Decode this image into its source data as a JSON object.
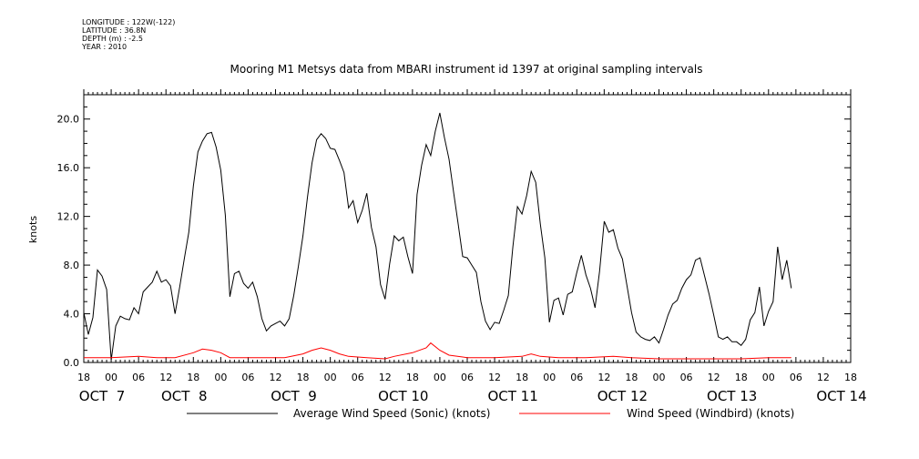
{
  "metadata": {
    "longitude": "LONGITUDE : 122W(-122)",
    "latitude": "LATITUDE : 36.8N",
    "depth": "DEPTH (m) : -2.5",
    "year": "YEAR : 2010"
  },
  "chart_data": {
    "type": "line",
    "title": "Mooring M1 Metsys data from MBARI instrument id 1397 at original sampling intervals",
    "ylabel": "knots",
    "xlabel": "",
    "ylim": [
      0,
      22
    ],
    "yticks": [
      "0.0",
      "4.0",
      "8.0",
      "12.0",
      "16.0",
      "20.0"
    ],
    "xlim_hours": [
      0,
      168
    ],
    "x_hour_labels": [
      "18",
      "00",
      "06",
      "12",
      "18",
      "00",
      "06",
      "12",
      "18",
      "00",
      "06",
      "12",
      "18",
      "00",
      "06",
      "12",
      "18",
      "00",
      "06",
      "12",
      "18",
      "00",
      "06",
      "12",
      "18",
      "00",
      "06",
      "12",
      "18"
    ],
    "x_day_labels": [
      "OCT  7",
      "OCT  8",
      "OCT  9",
      "OCT 10",
      "OCT 11",
      "OCT 12",
      "OCT 13",
      "OCT 14"
    ],
    "grid": false,
    "legend_placement": "bottom",
    "series": [
      {
        "name": "Average Wind Speed (Sonic) (knots)",
        "color": "#000000",
        "points": [
          [
            0,
            4.1
          ],
          [
            1,
            2.3
          ],
          [
            2,
            3.7
          ],
          [
            3,
            7.6
          ],
          [
            4,
            7.1
          ],
          [
            5,
            6.0
          ],
          [
            6,
            0.2
          ],
          [
            7,
            3.0
          ],
          [
            8,
            3.8
          ],
          [
            9,
            3.6
          ],
          [
            10,
            3.5
          ],
          [
            11,
            4.5
          ],
          [
            12,
            4.0
          ],
          [
            13,
            5.8
          ],
          [
            14,
            6.2
          ],
          [
            15,
            6.6
          ],
          [
            16,
            7.5
          ],
          [
            17,
            6.6
          ],
          [
            18,
            6.8
          ],
          [
            19,
            6.3
          ],
          [
            20,
            4.0
          ],
          [
            21,
            6.2
          ],
          [
            22,
            8.5
          ],
          [
            23,
            10.7
          ],
          [
            24,
            14.5
          ],
          [
            25,
            17.3
          ],
          [
            26,
            18.2
          ],
          [
            27,
            18.8
          ],
          [
            28,
            18.9
          ],
          [
            29,
            17.7
          ],
          [
            30,
            15.8
          ],
          [
            31,
            12.1
          ],
          [
            32,
            5.4
          ],
          [
            33,
            7.3
          ],
          [
            34,
            7.5
          ],
          [
            35,
            6.5
          ],
          [
            36,
            6.1
          ],
          [
            37,
            6.6
          ],
          [
            38,
            5.4
          ],
          [
            39,
            3.6
          ],
          [
            40,
            2.6
          ],
          [
            41,
            3.0
          ],
          [
            42,
            3.2
          ],
          [
            43,
            3.4
          ],
          [
            44,
            3.0
          ],
          [
            45,
            3.6
          ],
          [
            46,
            5.5
          ],
          [
            47,
            7.9
          ],
          [
            48,
            10.4
          ],
          [
            49,
            13.6
          ],
          [
            50,
            16.4
          ],
          [
            51,
            18.3
          ],
          [
            52,
            18.8
          ],
          [
            53,
            18.4
          ],
          [
            54,
            17.6
          ],
          [
            55,
            17.5
          ],
          [
            56,
            16.6
          ],
          [
            57,
            15.6
          ],
          [
            58,
            12.7
          ],
          [
            59,
            13.3
          ],
          [
            60,
            11.5
          ],
          [
            61,
            12.5
          ],
          [
            62,
            13.9
          ],
          [
            63,
            11.1
          ],
          [
            64,
            9.5
          ],
          [
            65,
            6.4
          ],
          [
            66,
            5.2
          ],
          [
            67,
            8.1
          ],
          [
            68,
            10.4
          ],
          [
            69,
            10.0
          ],
          [
            70,
            10.3
          ],
          [
            71,
            8.7
          ],
          [
            72,
            7.3
          ],
          [
            73,
            13.8
          ],
          [
            74,
            16.2
          ],
          [
            75,
            17.9
          ],
          [
            76,
            17.0
          ],
          [
            77,
            19.0
          ],
          [
            78,
            20.5
          ],
          [
            79,
            18.5
          ],
          [
            80,
            16.7
          ],
          [
            81,
            14.0
          ],
          [
            82,
            11.4
          ],
          [
            83,
            8.7
          ],
          [
            84,
            8.6
          ],
          [
            85,
            8.0
          ],
          [
            86,
            7.4
          ],
          [
            87,
            5.0
          ],
          [
            88,
            3.4
          ],
          [
            89,
            2.7
          ],
          [
            90,
            3.3
          ],
          [
            91,
            3.2
          ],
          [
            92,
            4.3
          ],
          [
            93,
            5.5
          ],
          [
            94,
            9.5
          ],
          [
            95,
            12.8
          ],
          [
            96,
            12.2
          ],
          [
            97,
            13.7
          ],
          [
            98,
            15.7
          ],
          [
            99,
            14.8
          ],
          [
            100,
            11.4
          ],
          [
            101,
            8.6
          ],
          [
            102,
            3.3
          ],
          [
            103,
            5.1
          ],
          [
            104,
            5.3
          ],
          [
            105,
            3.9
          ],
          [
            106,
            5.6
          ],
          [
            107,
            5.8
          ],
          [
            108,
            7.4
          ],
          [
            109,
            8.8
          ],
          [
            110,
            7.2
          ],
          [
            111,
            6.1
          ],
          [
            112,
            4.5
          ],
          [
            113,
            7.5
          ],
          [
            114,
            11.6
          ],
          [
            115,
            10.7
          ],
          [
            116,
            10.9
          ],
          [
            117,
            9.4
          ],
          [
            118,
            8.5
          ],
          [
            119,
            6.3
          ],
          [
            120,
            4.1
          ],
          [
            121,
            2.5
          ],
          [
            122,
            2.1
          ],
          [
            123,
            1.9
          ],
          [
            124,
            1.8
          ],
          [
            125,
            2.1
          ],
          [
            126,
            1.6
          ],
          [
            127,
            2.7
          ],
          [
            128,
            3.9
          ],
          [
            129,
            4.8
          ],
          [
            130,
            5.1
          ],
          [
            131,
            6.1
          ],
          [
            132,
            6.8
          ],
          [
            133,
            7.2
          ],
          [
            134,
            8.4
          ],
          [
            135,
            8.6
          ],
          [
            136,
            7.1
          ],
          [
            137,
            5.6
          ],
          [
            138,
            3.9
          ],
          [
            139,
            2.1
          ],
          [
            140,
            1.9
          ],
          [
            141,
            2.1
          ],
          [
            142,
            1.7
          ],
          [
            143,
            1.7
          ],
          [
            144,
            1.4
          ],
          [
            145,
            1.9
          ],
          [
            146,
            3.5
          ],
          [
            147,
            4.1
          ],
          [
            148,
            6.2
          ],
          [
            149,
            3.0
          ],
          [
            150,
            4.2
          ],
          [
            151,
            5.0
          ],
          [
            152,
            9.5
          ],
          [
            153,
            6.8
          ],
          [
            154,
            8.4
          ],
          [
            155,
            6.1
          ]
        ]
      },
      {
        "name": "Wind Speed (Windbird) (knots)",
        "color": "#ff0000",
        "points": [
          [
            0,
            0.4
          ],
          [
            6,
            0.4
          ],
          [
            12,
            0.5
          ],
          [
            16,
            0.4
          ],
          [
            20,
            0.4
          ],
          [
            24,
            0.8
          ],
          [
            26,
            1.1
          ],
          [
            28,
            1.0
          ],
          [
            30,
            0.8
          ],
          [
            32,
            0.4
          ],
          [
            40,
            0.4
          ],
          [
            44,
            0.4
          ],
          [
            48,
            0.7
          ],
          [
            50,
            1.0
          ],
          [
            52,
            1.2
          ],
          [
            54,
            1.0
          ],
          [
            56,
            0.7
          ],
          [
            58,
            0.5
          ],
          [
            62,
            0.4
          ],
          [
            66,
            0.3
          ],
          [
            68,
            0.5
          ],
          [
            72,
            0.8
          ],
          [
            75,
            1.2
          ],
          [
            76,
            1.6
          ],
          [
            78,
            1.0
          ],
          [
            80,
            0.6
          ],
          [
            84,
            0.4
          ],
          [
            90,
            0.4
          ],
          [
            96,
            0.5
          ],
          [
            98,
            0.7
          ],
          [
            100,
            0.5
          ],
          [
            104,
            0.4
          ],
          [
            110,
            0.4
          ],
          [
            116,
            0.5
          ],
          [
            120,
            0.4
          ],
          [
            126,
            0.3
          ],
          [
            132,
            0.3
          ],
          [
            138,
            0.3
          ],
          [
            144,
            0.3
          ],
          [
            150,
            0.4
          ],
          [
            155,
            0.4
          ]
        ]
      }
    ]
  }
}
